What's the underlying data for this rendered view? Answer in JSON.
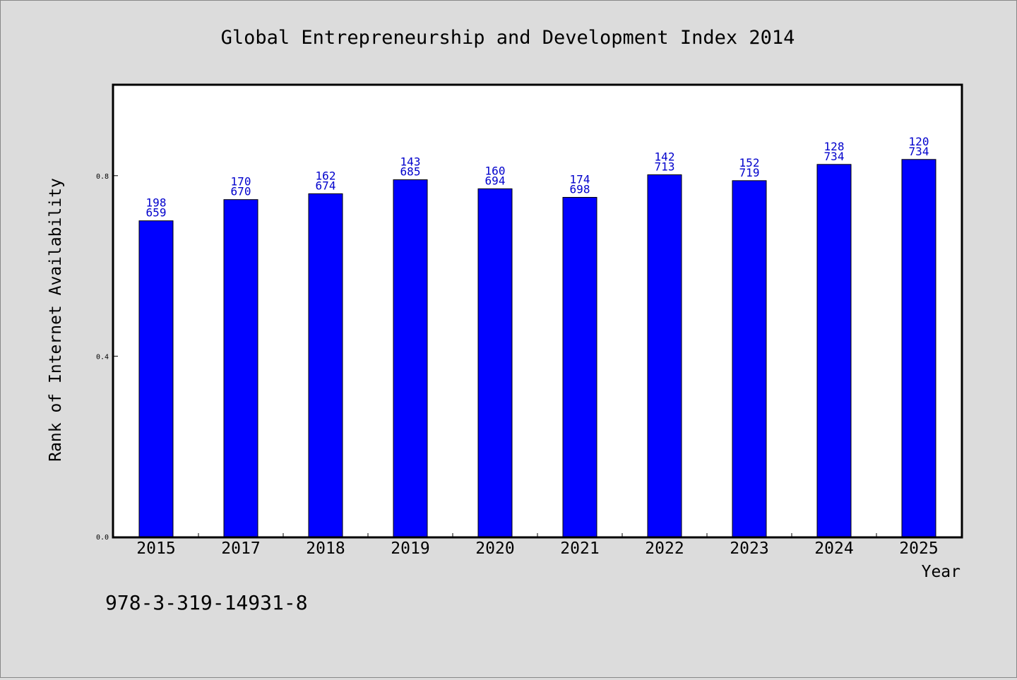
{
  "chart_data": {
    "type": "bar",
    "title": "Global Entrepreneurship and Development Index 2014",
    "xlabel": "Year",
    "ylabel": "Rank of Internet Availability",
    "categories": [
      "2015",
      "2017",
      "2018",
      "2019",
      "2020",
      "2021",
      "2022",
      "2023",
      "2024",
      "2025"
    ],
    "values": [
      0.7,
      0.747,
      0.76,
      0.791,
      0.771,
      0.752,
      0.802,
      0.789,
      0.825,
      0.836
    ],
    "label_top": [
      "198",
      "170",
      "162",
      "143",
      "160",
      "174",
      "142",
      "152",
      "128",
      "120"
    ],
    "label_bottom": [
      "659",
      "670",
      "674",
      "685",
      "694",
      "698",
      "713",
      "719",
      "734",
      "734"
    ],
    "ylim": [
      0,
      1.0
    ],
    "yticks": [
      0.0,
      0.4,
      0.8
    ],
    "ytick_labels": [
      "0.0",
      "0.4",
      "0.8"
    ],
    "grid": false,
    "bar_color": "#0000ff",
    "label_color": "#0000cc",
    "plot_background": "#ffffff",
    "page_background": "#dcdcdc"
  },
  "footer_text": "978-3-319-14931-8"
}
